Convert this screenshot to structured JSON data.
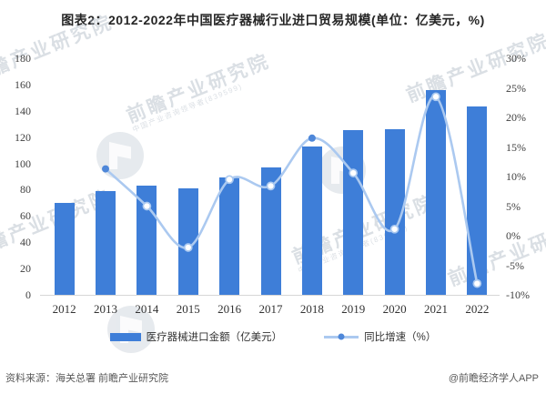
{
  "title": "图表2：2012-2022年中国医疗器械行业进口贸易规模(单位：亿美元，%)",
  "chart_data": {
    "type": "combo_bar_line",
    "title": "图表2：2012-2022年中国医疗器械行业进口贸易规模(单位：亿美元，%)",
    "categories": [
      "2012",
      "2013",
      "2014",
      "2015",
      "2016",
      "2017",
      "2018",
      "2019",
      "2020",
      "2021",
      "2022"
    ],
    "series": [
      {
        "name": "医疗器械进口金额（亿美元）",
        "type": "bar",
        "axis": "left",
        "values": [
          70,
          79,
          83,
          81,
          89,
          97,
          113,
          125,
          126,
          156,
          143
        ]
      },
      {
        "name": "同比增速（%）",
        "type": "line",
        "axis": "right",
        "values": [
          null,
          11.3,
          5.0,
          -2.0,
          9.5,
          8.4,
          16.5,
          10.6,
          1.1,
          23.5,
          -8.1
        ]
      }
    ],
    "left_axis": {
      "min": 0,
      "max": 180,
      "step": 20,
      "tick_labels": [
        "0",
        "20",
        "40",
        "60",
        "80",
        "100",
        "120",
        "140",
        "160",
        "180"
      ]
    },
    "right_axis": {
      "min": -10,
      "max": 30,
      "step": 5,
      "tick_labels": [
        "-10%",
        "-5%",
        "0%",
        "5%",
        "10%",
        "15%",
        "20%",
        "25%",
        "30%"
      ]
    },
    "grid": false,
    "legend_position": "bottom",
    "line_marker_filled_years": [
      "2013",
      "2018"
    ]
  },
  "footer": {
    "source": "资料来源：海关总署 前瞻产业研究院",
    "credit": "@前瞻经济学人APP"
  },
  "watermark": {
    "text": "前瞻产业研究院",
    "subtext": "中国产业咨询领导者(839599)"
  },
  "colors": {
    "bar": "#3e7ed8",
    "line": "#abc9f0",
    "marker": "#4e87d9",
    "axisText": "#404040",
    "titleText": "#262626",
    "baseline": "#d6d6d6",
    "watermarkText": "#a9b4c0",
    "footerText": "#595959"
  }
}
